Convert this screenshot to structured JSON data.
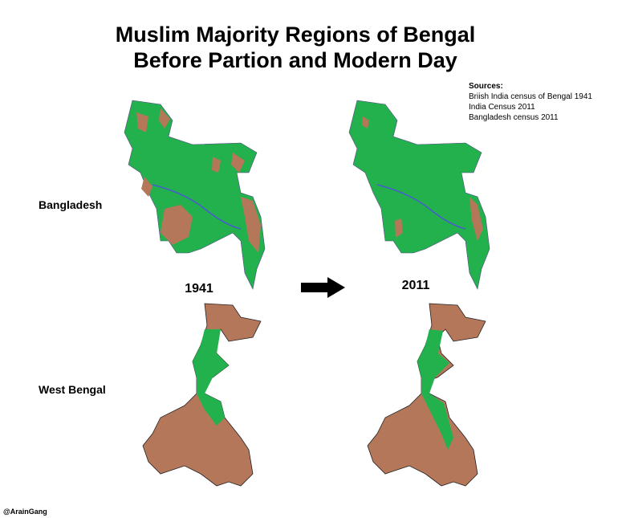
{
  "title": [
    "Muslim Majority Regions of Bengal",
    "Before Partion and Modern Day"
  ],
  "sources": {
    "heading": "Sources:",
    "items": [
      "Briish India census of Bengal 1941",
      "India Census 2011",
      "Bangladesh census 2011"
    ]
  },
  "rows": [
    "Bangladesh",
    "West Bengal"
  ],
  "years": [
    "1941",
    "2011"
  ],
  "credit": "@ArainGang"
}
